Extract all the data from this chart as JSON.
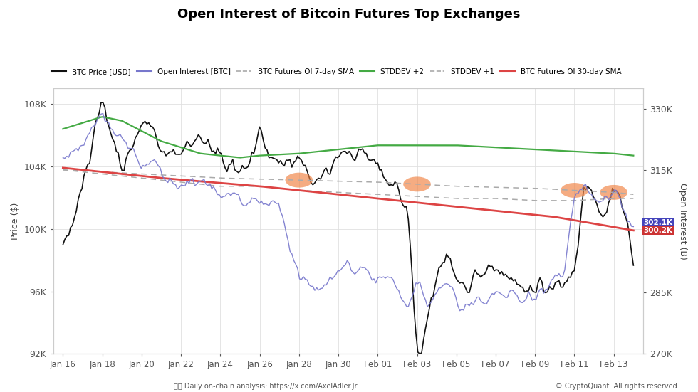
{
  "title": "Open Interest of Bitcoin Futures Top Exchanges",
  "ylabel_left": "Price ($)",
  "ylabel_right": "Open Interest (B)",
  "background_color": "#ffffff",
  "date_labels": [
    "Jan 16",
    "Jan 18",
    "Jan 20",
    "Jan 22",
    "Jan 24",
    "Jan 26",
    "Jan 28",
    "Jan 30",
    "Feb 01",
    "Feb 03",
    "Feb 05",
    "Feb 07",
    "Feb 09",
    "Feb 11",
    "Feb 13"
  ],
  "date_positions": [
    0,
    2,
    4,
    6,
    8,
    10,
    12,
    14,
    16,
    18,
    20,
    22,
    24,
    26,
    28
  ],
  "price_ylim": [
    92000,
    109000
  ],
  "oi_ylim": [
    270000,
    335000
  ],
  "price_yticks": [
    92000,
    96000,
    100000,
    104000,
    108000
  ],
  "price_yticklabels": [
    "92K",
    "96K",
    "100K",
    "104K",
    "108K"
  ],
  "oi_yticks": [
    270000,
    285000,
    300000,
    315000,
    330000
  ],
  "oi_yticklabels": [
    "270K",
    "285K",
    "300K",
    "315K",
    "330K"
  ],
  "annotation_oi_label": "302.1K",
  "annotation_sma_label": "300.2K",
  "annotation_oi_color": "#4444bb",
  "annotation_sma_color": "#cc3333",
  "footer_left": "Daily on-chain analysis: https://x.com/AxelAdler.Jr",
  "footer_right": "© CryptoQuant. All rights reserved",
  "btc_color": "#111111",
  "oi_color": "#7777cc",
  "sma7_color": "#aaaaaa",
  "stddev2_color": "#44aa44",
  "stddev1_color": "#aaaaaa",
  "sma30_color": "#dd4444",
  "orange_circle_color": "#f08040",
  "orange_circle_alpha": 0.65
}
